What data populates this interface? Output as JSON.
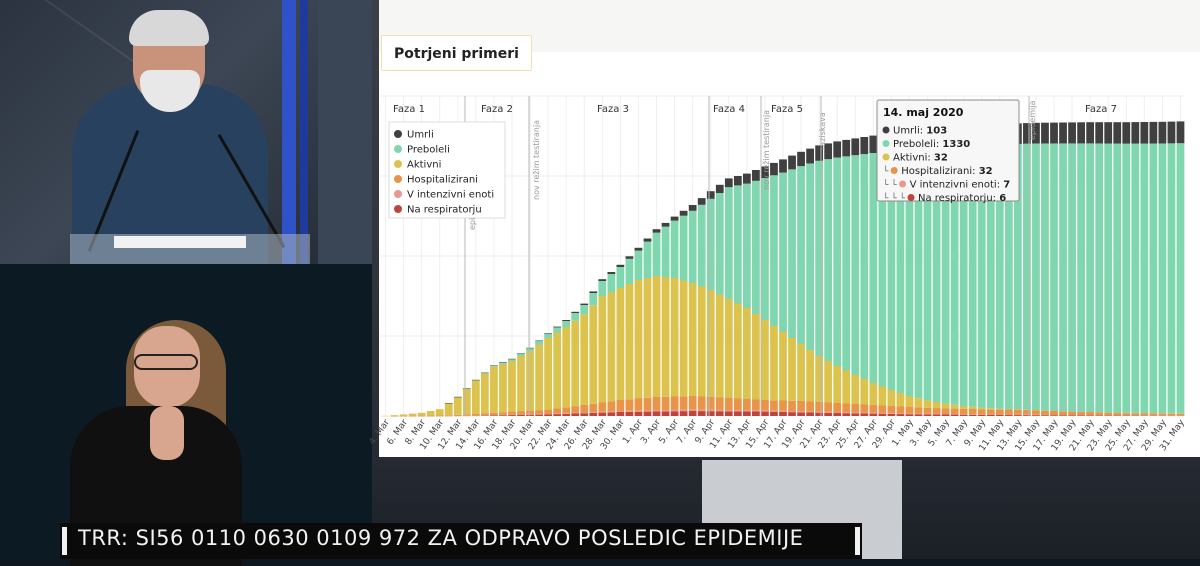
{
  "caption": "TRR: SI56 0110 0630 0109 972 ZA ODPRAVO POSLEDIC EPIDEMIJE",
  "chart_data": {
    "type": "bar",
    "title": "Potrjeni primeri",
    "stacked": true,
    "grid": true,
    "legend_position": "top-left",
    "colors": {
      "Umrli": "#404040",
      "Preboleli": "#80d6ae",
      "Aktivni": "#dcc34e",
      "Hospitalizirani": "#e8954a",
      "V intenzivni enoti": "#e59a8c",
      "Na respiratorju": "#c0443c"
    },
    "phases": [
      "Faza 1",
      "Faza 2",
      "Faza 3",
      "Faza 4",
      "Faza 5",
      "Faza 7"
    ],
    "events": [
      "epidemija",
      "nov režim testiranja",
      "nov režim testiranja",
      "raziskava",
      "epidemija"
    ],
    "x_tick_labels": [
      "4. Mar",
      "6. Mar",
      "8. Mar",
      "10. Mar",
      "12. Mar",
      "14. Mar",
      "16. Mar",
      "18. Mar",
      "20. Mar",
      "22. Mar",
      "24. Mar",
      "26. Mar",
      "28. Mar",
      "30. Mar",
      "1. Apr",
      "3. Apr",
      "5. Apr",
      "7. Apr",
      "9. Apr",
      "11. Apr",
      "13. Apr",
      "15. Apr",
      "17. Apr",
      "19. Apr",
      "21. Apr",
      "23. Apr",
      "25. Apr",
      "27. Apr",
      "29. Apr",
      "1. May",
      "3. May",
      "5. May",
      "7. May",
      "9. May",
      "11. May",
      "13. May",
      "15. May",
      "17. May",
      "19. May",
      "21. May",
      "23. May",
      "25. May",
      "27. May",
      "29. May",
      "31. May"
    ],
    "start_date": "2020-03-04",
    "end_date": "2020-05-31",
    "cumulative_cases": [
      [
        "2020-03-04",
        1
      ],
      [
        "2020-03-06",
        8
      ],
      [
        "2020-03-08",
        16
      ],
      [
        "2020-03-10",
        34
      ],
      [
        "2020-03-12",
        96
      ],
      [
        "2020-03-14",
        181
      ],
      [
        "2020-03-16",
        253
      ],
      [
        "2020-03-18",
        286
      ],
      [
        "2020-03-20",
        341
      ],
      [
        "2020-03-22",
        414
      ],
      [
        "2020-03-24",
        480
      ],
      [
        "2020-03-26",
        562
      ],
      [
        "2020-03-28",
        684
      ],
      [
        "2020-03-30",
        756
      ],
      [
        "2020-04-01",
        841
      ],
      [
        "2020-04-03",
        934
      ],
      [
        "2020-04-05",
        997
      ],
      [
        "2020-04-07",
        1055
      ],
      [
        "2020-04-09",
        1124
      ],
      [
        "2020-04-11",
        1188
      ],
      [
        "2020-04-13",
        1212
      ],
      [
        "2020-04-15",
        1248
      ],
      [
        "2020-04-17",
        1283
      ],
      [
        "2020-04-19",
        1321
      ],
      [
        "2020-04-21",
        1353
      ],
      [
        "2020-04-23",
        1373
      ],
      [
        "2020-04-25",
        1388
      ],
      [
        "2020-04-27",
        1402
      ],
      [
        "2020-04-29",
        1411
      ],
      [
        "2020-05-01",
        1420
      ],
      [
        "2020-05-03",
        1428
      ],
      [
        "2020-05-05",
        1436
      ],
      [
        "2020-05-07",
        1442
      ],
      [
        "2020-05-09",
        1450
      ],
      [
        "2020-05-11",
        1458
      ],
      [
        "2020-05-13",
        1463
      ],
      [
        "2020-05-15",
        1466
      ],
      [
        "2020-05-17",
        1467
      ],
      [
        "2020-05-19",
        1468
      ],
      [
        "2020-05-21",
        1469
      ],
      [
        "2020-05-23",
        1469
      ],
      [
        "2020-05-25",
        1469
      ],
      [
        "2020-05-27",
        1470
      ],
      [
        "2020-05-29",
        1471
      ],
      [
        "2020-05-31",
        1473
      ]
    ],
    "active_cases": [
      [
        "2020-03-04",
        1
      ],
      [
        "2020-03-06",
        8
      ],
      [
        "2020-03-08",
        16
      ],
      [
        "2020-03-10",
        34
      ],
      [
        "2020-03-12",
        95
      ],
      [
        "2020-03-14",
        178
      ],
      [
        "2020-03-16",
        246
      ],
      [
        "2020-03-18",
        275
      ],
      [
        "2020-03-20",
        325
      ],
      [
        "2020-03-22",
        390
      ],
      [
        "2020-03-24",
        445
      ],
      [
        "2020-03-26",
        508
      ],
      [
        "2020-03-28",
        600
      ],
      [
        "2020-03-30",
        640
      ],
      [
        "2020-04-01",
        680
      ],
      [
        "2020-04-03",
        700
      ],
      [
        "2020-04-05",
        690
      ],
      [
        "2020-04-07",
        665
      ],
      [
        "2020-04-09",
        630
      ],
      [
        "2020-04-11",
        585
      ],
      [
        "2020-04-13",
        540
      ],
      [
        "2020-04-15",
        480
      ],
      [
        "2020-04-17",
        420
      ],
      [
        "2020-04-19",
        360
      ],
      [
        "2020-04-21",
        300
      ],
      [
        "2020-04-23",
        250
      ],
      [
        "2020-04-25",
        205
      ],
      [
        "2020-04-27",
        165
      ],
      [
        "2020-04-29",
        130
      ],
      [
        "2020-05-01",
        100
      ],
      [
        "2020-05-03",
        78
      ],
      [
        "2020-05-05",
        62
      ],
      [
        "2020-05-07",
        50
      ],
      [
        "2020-05-09",
        42
      ],
      [
        "2020-05-11",
        36
      ],
      [
        "2020-05-13",
        33
      ],
      [
        "2020-05-15",
        30
      ],
      [
        "2020-05-17",
        25
      ],
      [
        "2020-05-19",
        22
      ],
      [
        "2020-05-21",
        20
      ],
      [
        "2020-05-23",
        18
      ],
      [
        "2020-05-25",
        16
      ],
      [
        "2020-05-27",
        15
      ],
      [
        "2020-05-29",
        14
      ],
      [
        "2020-05-31",
        13
      ]
    ],
    "hospitalized": [
      [
        "2020-03-04",
        0
      ],
      [
        "2020-03-10",
        2
      ],
      [
        "2020-03-14",
        10
      ],
      [
        "2020-03-18",
        22
      ],
      [
        "2020-03-22",
        32
      ],
      [
        "2020-03-26",
        55
      ],
      [
        "2020-03-30",
        80
      ],
      [
        "2020-04-03",
        95
      ],
      [
        "2020-04-07",
        100
      ],
      [
        "2020-04-11",
        90
      ],
      [
        "2020-04-15",
        80
      ],
      [
        "2020-04-19",
        75
      ],
      [
        "2020-04-23",
        65
      ],
      [
        "2020-04-27",
        55
      ],
      [
        "2020-05-01",
        45
      ],
      [
        "2020-05-05",
        38
      ],
      [
        "2020-05-09",
        34
      ],
      [
        "2020-05-13",
        32
      ],
      [
        "2020-05-17",
        25
      ],
      [
        "2020-05-21",
        20
      ],
      [
        "2020-05-25",
        15
      ],
      [
        "2020-05-31",
        12
      ]
    ],
    "icu": [
      [
        "2020-03-04",
        0
      ],
      [
        "2020-03-14",
        3
      ],
      [
        "2020-03-22",
        10
      ],
      [
        "2020-03-30",
        25
      ],
      [
        "2020-04-07",
        32
      ],
      [
        "2020-04-15",
        28
      ],
      [
        "2020-04-23",
        20
      ],
      [
        "2020-05-01",
        12
      ],
      [
        "2020-05-09",
        8
      ],
      [
        "2020-05-17",
        5
      ],
      [
        "2020-05-31",
        3
      ]
    ],
    "respirator": [
      [
        "2020-03-04",
        0
      ],
      [
        "2020-03-14",
        2
      ],
      [
        "2020-03-22",
        8
      ],
      [
        "2020-03-30",
        20
      ],
      [
        "2020-04-07",
        25
      ],
      [
        "2020-04-15",
        22
      ],
      [
        "2020-04-23",
        15
      ],
      [
        "2020-05-01",
        9
      ],
      [
        "2020-05-09",
        6
      ],
      [
        "2020-05-17",
        4
      ],
      [
        "2020-05-31",
        2
      ]
    ],
    "deaths": [
      [
        "2020-03-04",
        0
      ],
      [
        "2020-03-14",
        1
      ],
      [
        "2020-03-22",
        3
      ],
      [
        "2020-03-30",
        11
      ],
      [
        "2020-04-05",
        20
      ],
      [
        "2020-04-09",
        38
      ],
      [
        "2020-04-13",
        50
      ],
      [
        "2020-04-17",
        66
      ],
      [
        "2020-04-21",
        77
      ],
      [
        "2020-04-25",
        84
      ],
      [
        "2020-04-29",
        90
      ],
      [
        "2020-05-03",
        97
      ],
      [
        "2020-05-07",
        100
      ],
      [
        "2020-05-11",
        102
      ],
      [
        "2020-05-14",
        103
      ],
      [
        "2020-05-21",
        106
      ],
      [
        "2020-05-31",
        109
      ]
    ],
    "tooltip": {
      "date": "14. maj 2020",
      "items": [
        {
          "prefix": "",
          "label": "Umrli",
          "value": "103"
        },
        {
          "prefix": "",
          "label": "Preboleli",
          "value": "1330"
        },
        {
          "prefix": "",
          "label": "Aktivni",
          "value": "32"
        },
        {
          "prefix": "└",
          "label": "Hospitalizirani",
          "value": "32"
        },
        {
          "prefix": "└ └",
          "label": "V intenzivni enoti",
          "value": "7"
        },
        {
          "prefix": "└ └ └",
          "label": "Na respiratorju",
          "value": "6"
        }
      ]
    }
  }
}
